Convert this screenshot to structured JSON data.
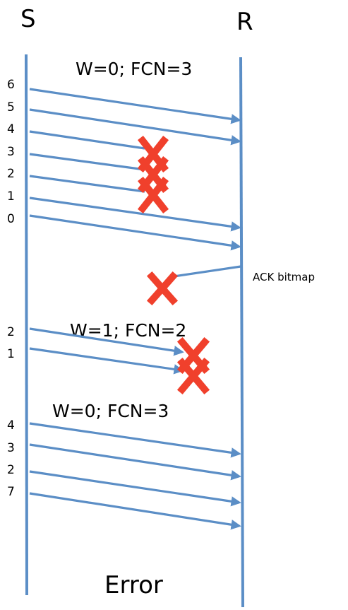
{
  "endpoints": {
    "sender": "S",
    "receiver": "R"
  },
  "windows": [
    {
      "label": "W=0; FCN=3",
      "fragments": [
        "6",
        "5",
        "4",
        "3",
        "2",
        "1",
        "0"
      ]
    },
    {
      "label": "W=1; FCN=2",
      "fragments": [
        "2",
        "1"
      ]
    },
    {
      "label": "W=0; FCN=3",
      "fragments": [
        "4",
        "3",
        "2",
        "7"
      ]
    }
  ],
  "ack_label": "ACK bitmap",
  "result_label": "Error",
  "colors": {
    "line": "#5b8ec6",
    "loss": "#f0402c"
  }
}
